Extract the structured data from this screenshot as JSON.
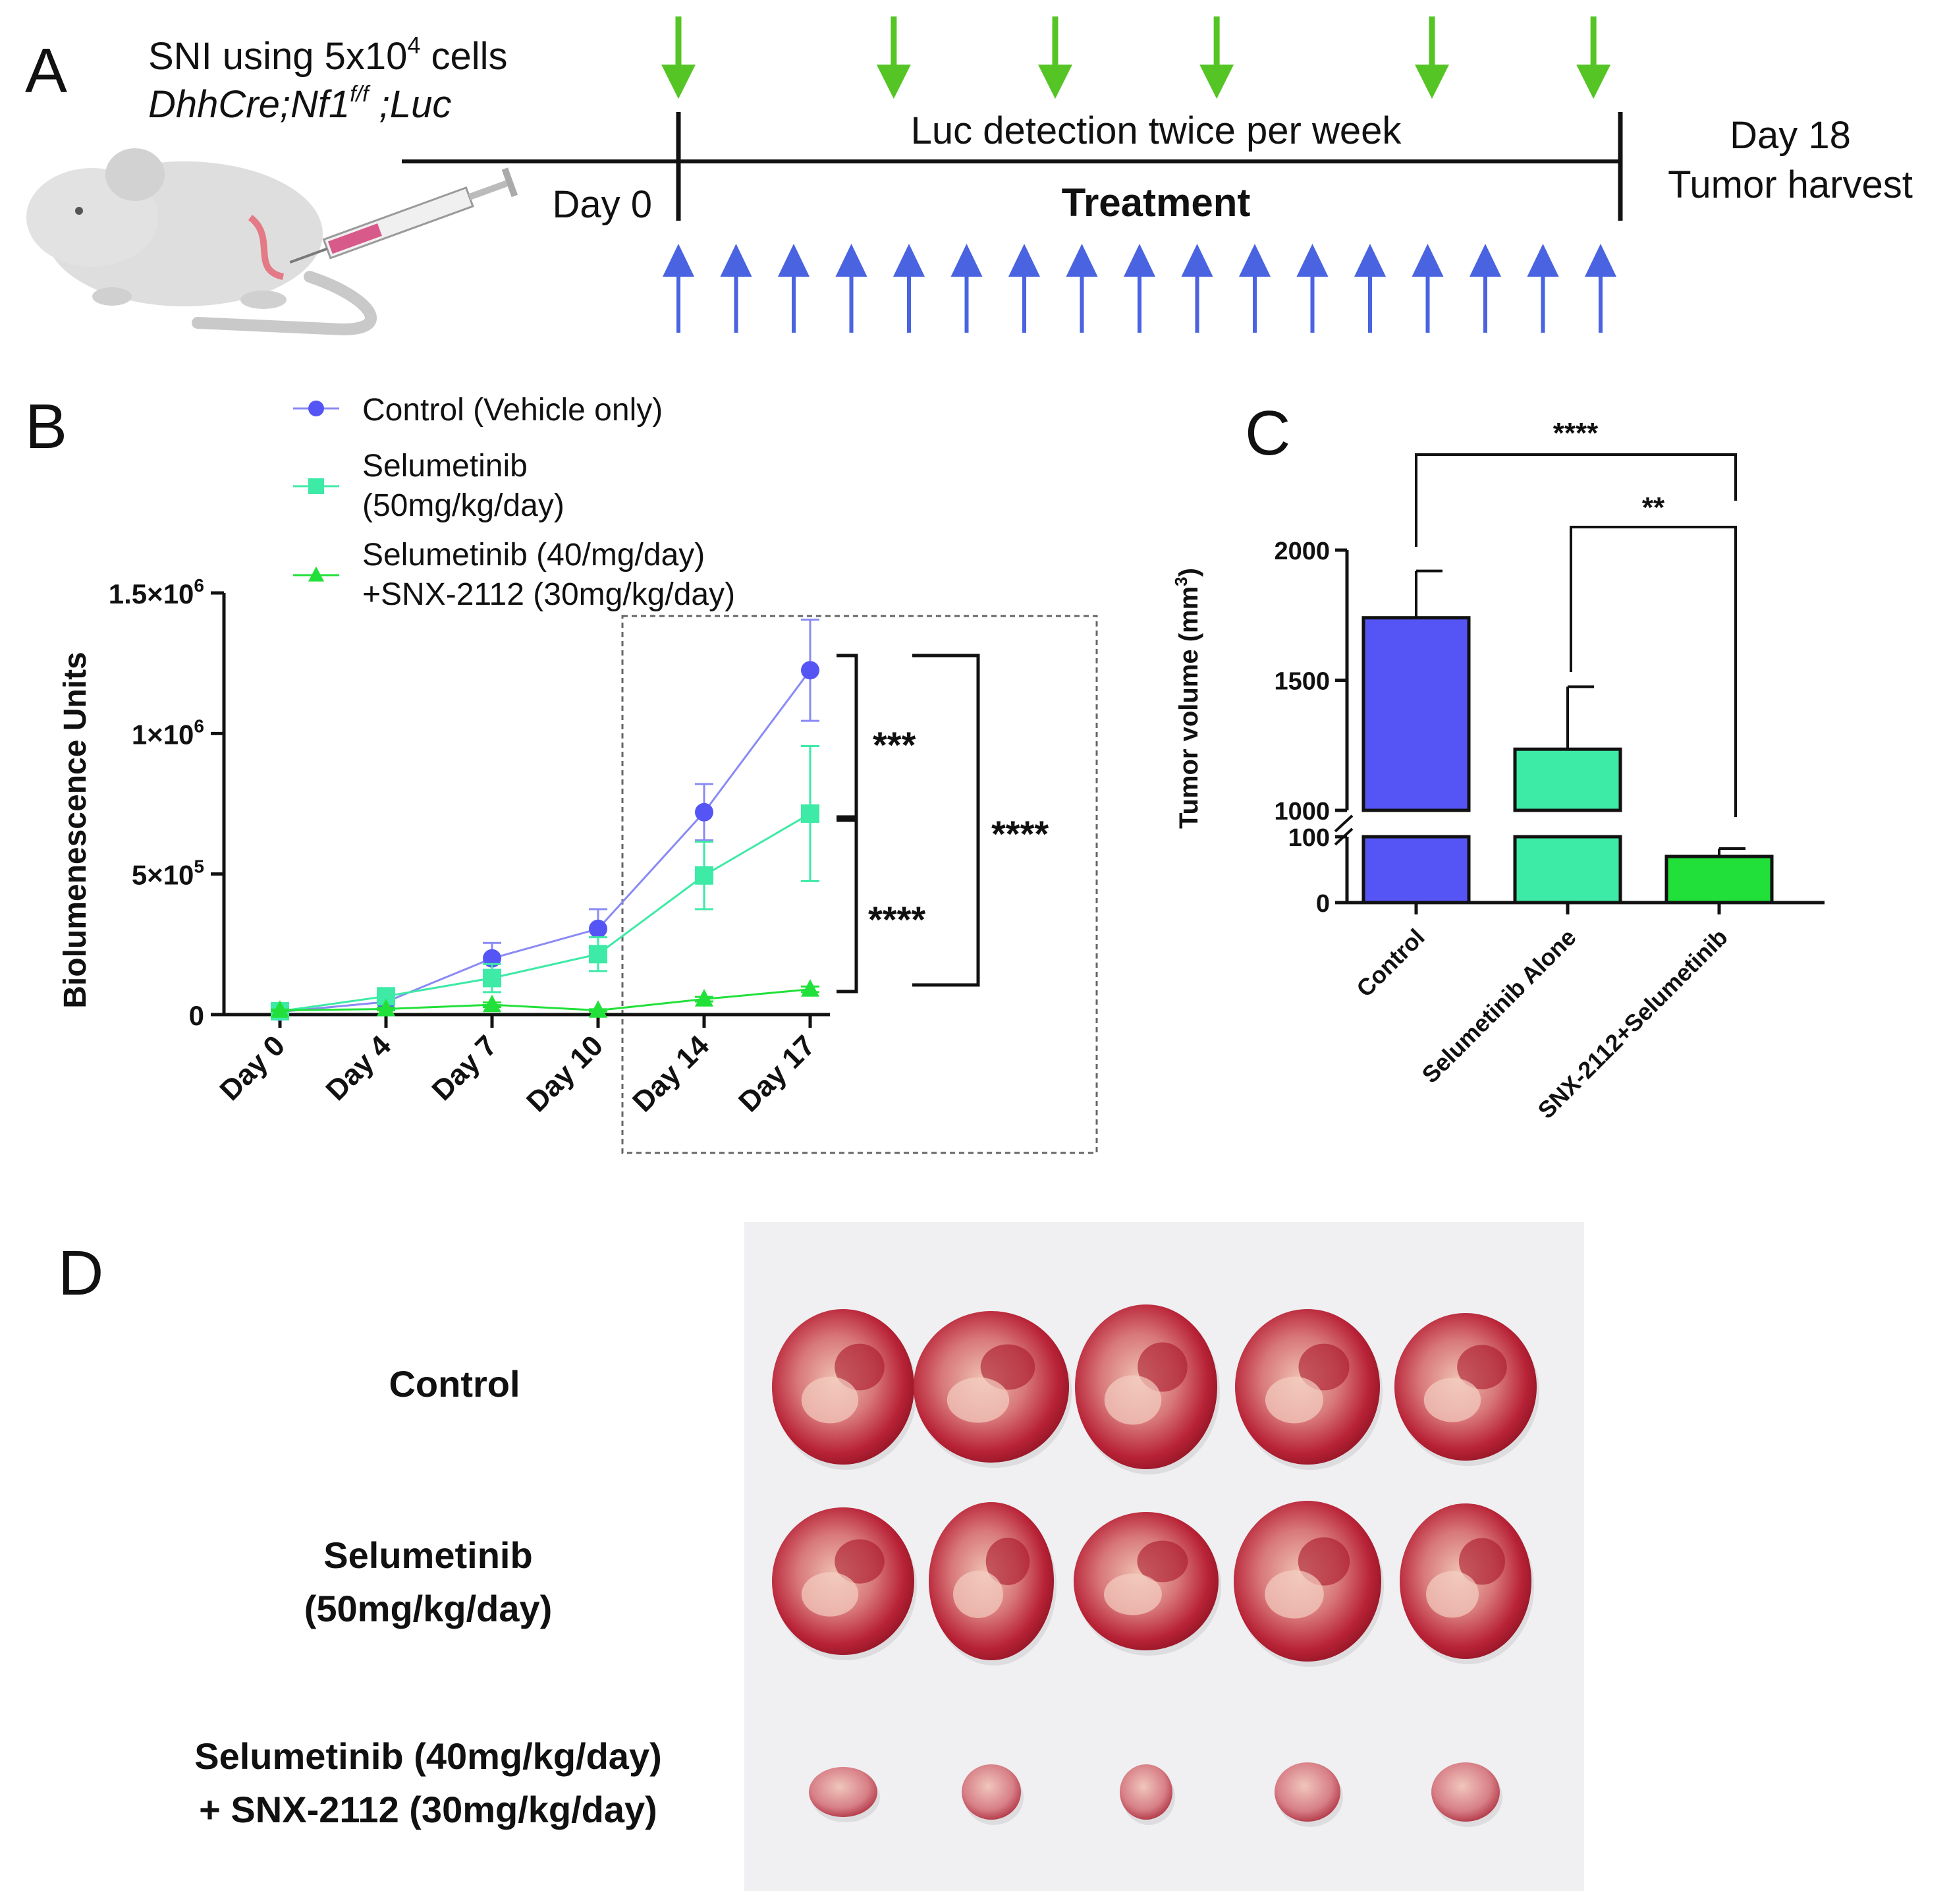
{
  "colors": {
    "control": "#5555f5",
    "control_line": "#8a8af5",
    "selumetinib": "#3deaa6",
    "combo": "#22e03a",
    "green_arrow": "#55c425",
    "blue_arrow": "#4a63e0",
    "tumor_dark": "#b01828",
    "tumor_light": "#e8b0a6"
  },
  "panels": {
    "a": {
      "letter": "A"
    },
    "b": {
      "letter": "B"
    },
    "c": {
      "letter": "C"
    },
    "d": {
      "letter": "D"
    }
  },
  "timeline": {
    "sni_line1_prefix": "SNI using 5x10",
    "sni_line1_sup": "4",
    "sni_line1_suffix": " cells",
    "genotype_a": "DhhCre;Nf1",
    "genotype_sup": "f/f",
    "genotype_b": " ;Luc",
    "day0_label": "Day 0",
    "luc_label": "Luc detection twice per week",
    "treatment_label": "Treatment",
    "day18_label": "Day 18",
    "harvest_label": "Tumor harvest",
    "luc_detection_days": [
      0,
      4,
      7,
      10,
      14,
      17
    ],
    "treatment_doses": 17
  },
  "chart_data": [
    {
      "panel": "B",
      "type": "line",
      "title": "",
      "xlabel": "",
      "ylabel": "Biolumenescence Units",
      "categories": [
        "Day 0",
        "Day 4",
        "Day 7",
        "Day 10",
        "Day 14",
        "Day 17"
      ],
      "ylim": [
        0,
        1500000
      ],
      "y_ticks": [
        0,
        500000,
        1000000,
        1500000
      ],
      "y_tick_labels": [
        "0",
        "5×10",
        "1×10",
        "1.5×10"
      ],
      "y_tick_exponents": [
        "",
        "5",
        "6",
        "6"
      ],
      "legend": "top-left",
      "series": [
        {
          "name": "Control (Vehicle only)",
          "marker": "circle",
          "values": [
            10000,
            45000,
            200000,
            305000,
            720000,
            1225000
          ],
          "errors": [
            5000,
            10000,
            55000,
            70000,
            100000,
            180000
          ]
        },
        {
          "name": "Selumetinib",
          "name_line2": "(50mg/kg/day)",
          "marker": "square",
          "values": [
            12000,
            65000,
            130000,
            215000,
            495000,
            715000
          ],
          "errors": [
            5000,
            10000,
            50000,
            60000,
            120000,
            240000
          ]
        },
        {
          "name": "Selumetinib (40/mg/day)",
          "name_line2": "+SNX-2112 (30mg/kg/day)",
          "marker": "triangle",
          "values": [
            15000,
            20000,
            35000,
            15000,
            55000,
            90000
          ],
          "errors": [
            3000,
            5000,
            8000,
            4000,
            8000,
            10000
          ]
        }
      ],
      "significance": [
        "***",
        "****",
        "****"
      ]
    },
    {
      "panel": "C",
      "type": "bar",
      "title": "",
      "ylabel": "Tumor volume (mm",
      "ylabel_sup": "3",
      "ylabel_end": ")",
      "categories": [
        "Control",
        "Selumetinib Alone",
        "SNX-2112+Selumetinib"
      ],
      "values": [
        1740,
        1235,
        70
      ],
      "errors": [
        180,
        240,
        12
      ],
      "axis_break": [
        100,
        1000
      ],
      "ylim_lower": [
        0,
        100
      ],
      "ylim_upper": [
        1000,
        2000
      ],
      "y_tick_labels": [
        "0",
        "100",
        "1000",
        "1500",
        "2000"
      ],
      "significance": [
        "****",
        "**"
      ]
    }
  ],
  "photo": {
    "row_labels": [
      {
        "line1": "Control",
        "line2": ""
      },
      {
        "line1": "Selumetinib",
        "line2": "(50mg/kg/day)"
      },
      {
        "line1": "Selumetinib (40mg/kg/day)",
        "line2": "+ SNX-2112 (30mg/kg/day)"
      }
    ],
    "tumors_per_row": 5
  }
}
